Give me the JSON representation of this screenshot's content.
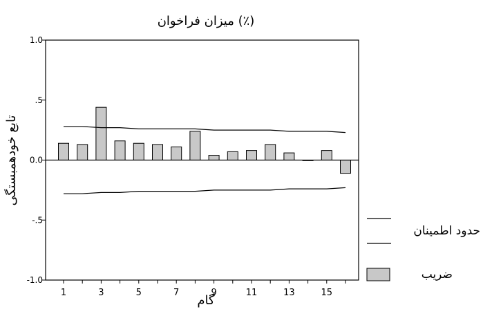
{
  "chart_data": {
    "type": "bar",
    "title": "میزان فراخوان (٪)",
    "xlabel": "گام",
    "ylabel": "تابع خودهمبستگی",
    "categories": [
      1,
      2,
      3,
      4,
      5,
      6,
      7,
      8,
      9,
      10,
      11,
      12,
      13,
      14,
      15,
      16
    ],
    "x_tick_labels": [
      "1",
      "3",
      "5",
      "7",
      "9",
      "11",
      "13",
      "15"
    ],
    "y_tick_labels": [
      "1.0",
      ".5",
      "0.0",
      "-.5",
      "-1.0"
    ],
    "ylim": [
      -1.0,
      1.0
    ],
    "series": [
      {
        "name": "ضریب",
        "values": [
          0.14,
          0.13,
          0.44,
          0.16,
          0.14,
          0.13,
          0.11,
          0.24,
          0.04,
          0.07,
          0.08,
          0.13,
          0.06,
          0.0,
          0.08,
          -0.11
        ]
      }
    ],
    "confidence_limits": {
      "name": "حدود اطمینان",
      "upper": [
        0.28,
        0.28,
        0.27,
        0.27,
        0.26,
        0.26,
        0.26,
        0.26,
        0.25,
        0.25,
        0.25,
        0.25,
        0.24,
        0.24,
        0.24,
        0.23
      ],
      "lower": [
        -0.28,
        -0.28,
        -0.27,
        -0.27,
        -0.26,
        -0.26,
        -0.26,
        -0.26,
        -0.25,
        -0.25,
        -0.25,
        -0.25,
        -0.24,
        -0.24,
        -0.24,
        -0.23
      ]
    },
    "legend_position": "right",
    "grid": false,
    "colors": {
      "bar_fill": "#c8c8c8",
      "bar_stroke": "#000000",
      "line": "#000000",
      "background": "#ffffff"
    }
  }
}
